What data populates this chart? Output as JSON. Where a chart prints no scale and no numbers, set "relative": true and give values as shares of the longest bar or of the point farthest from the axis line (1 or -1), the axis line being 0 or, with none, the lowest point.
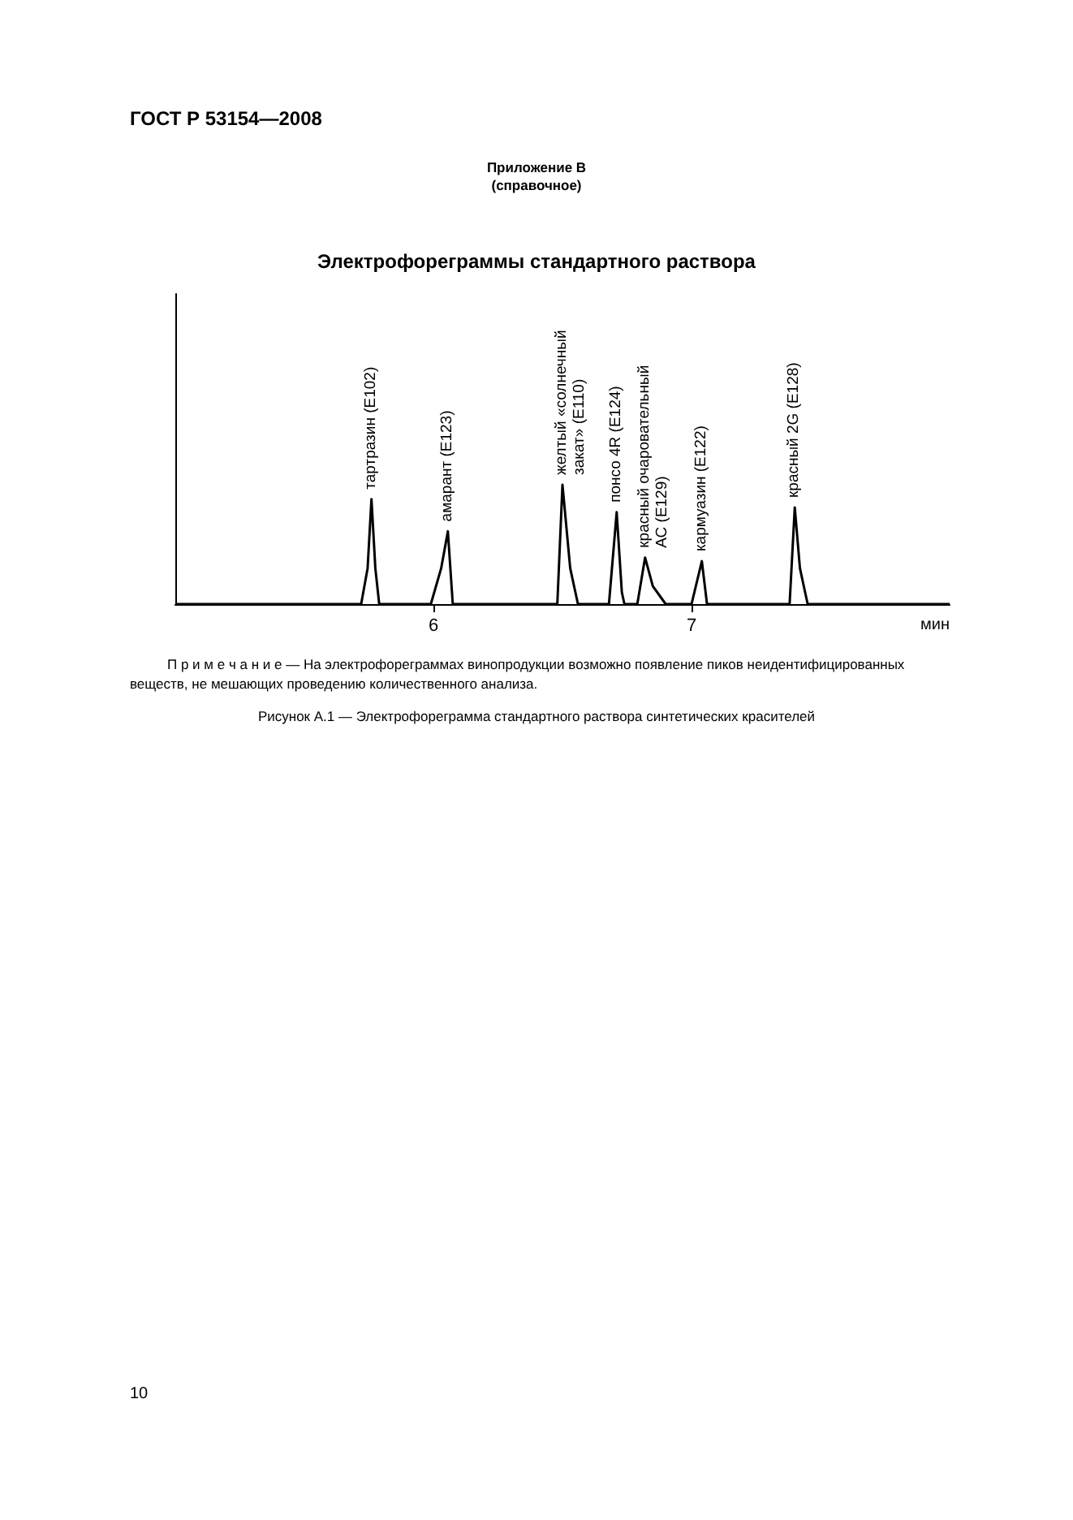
{
  "chart_data": {
    "type": "line",
    "relative": true,
    "title": "Электрофореграммы стандартного раствора",
    "xlabel": "мин",
    "xlim": [
      5,
      8
    ],
    "xticks": [
      6,
      7
    ],
    "x": [
      5.0,
      5.72,
      5.745,
      5.76,
      5.775,
      5.79,
      5.99,
      6.03,
      6.056,
      6.075,
      6.48,
      6.5,
      6.53,
      6.56,
      6.68,
      6.71,
      6.73,
      6.74,
      6.79,
      6.82,
      6.85,
      6.9,
      7.0,
      7.04,
      7.06,
      7.38,
      7.4,
      7.42,
      7.45,
      8.0
    ],
    "series": [
      {
        "color": "#000000",
        "values": [
          0,
          0,
          0.3,
          0.88,
          0.3,
          0,
          0,
          0.3,
          0.61,
          0,
          0,
          1,
          0.3,
          0,
          0,
          0.77,
          0.1,
          0,
          0,
          0.39,
          0.15,
          0,
          0,
          0.36,
          0,
          0,
          0.81,
          0.3,
          0,
          0
        ]
      }
    ],
    "marker": "none",
    "line_style": "solid",
    "annotations": [
      "ГОСТ Р 53154—2008",
      "Приложение В",
      "(справочное)",
      {
        "text": "тартразин (Е102)",
        "x": 5.76,
        "y": 0.88
      },
      {
        "text": "амарант (Е123)",
        "x": 6.056,
        "y": 0.61
      },
      {
        "text": "желтый «солнечный\nзакат» (Е110)",
        "x": 6.5,
        "y": 1
      },
      {
        "text": "понсо 4R (Е124)",
        "x": 6.71,
        "y": 0.77
      },
      {
        "text": "красный очаровательный\nАС (Е129)",
        "x": 6.82,
        "y": 0.39
      },
      {
        "text": "кармуазин (Е122)",
        "x": 7.04,
        "y": 0.36
      },
      {
        "text": "красный 2G (Е128)",
        "x": 7.4,
        "y": 0.81
      },
      "П р и м е ч а н и е — На электрофореграммах винопродукции возможно появление пиков неидентифицированных веществ, не мешающих проведению количественного анализа.",
      "Рисунок А.1 — Электрофореграмма стандартного раствора синтетических красителей",
      "10"
    ]
  }
}
